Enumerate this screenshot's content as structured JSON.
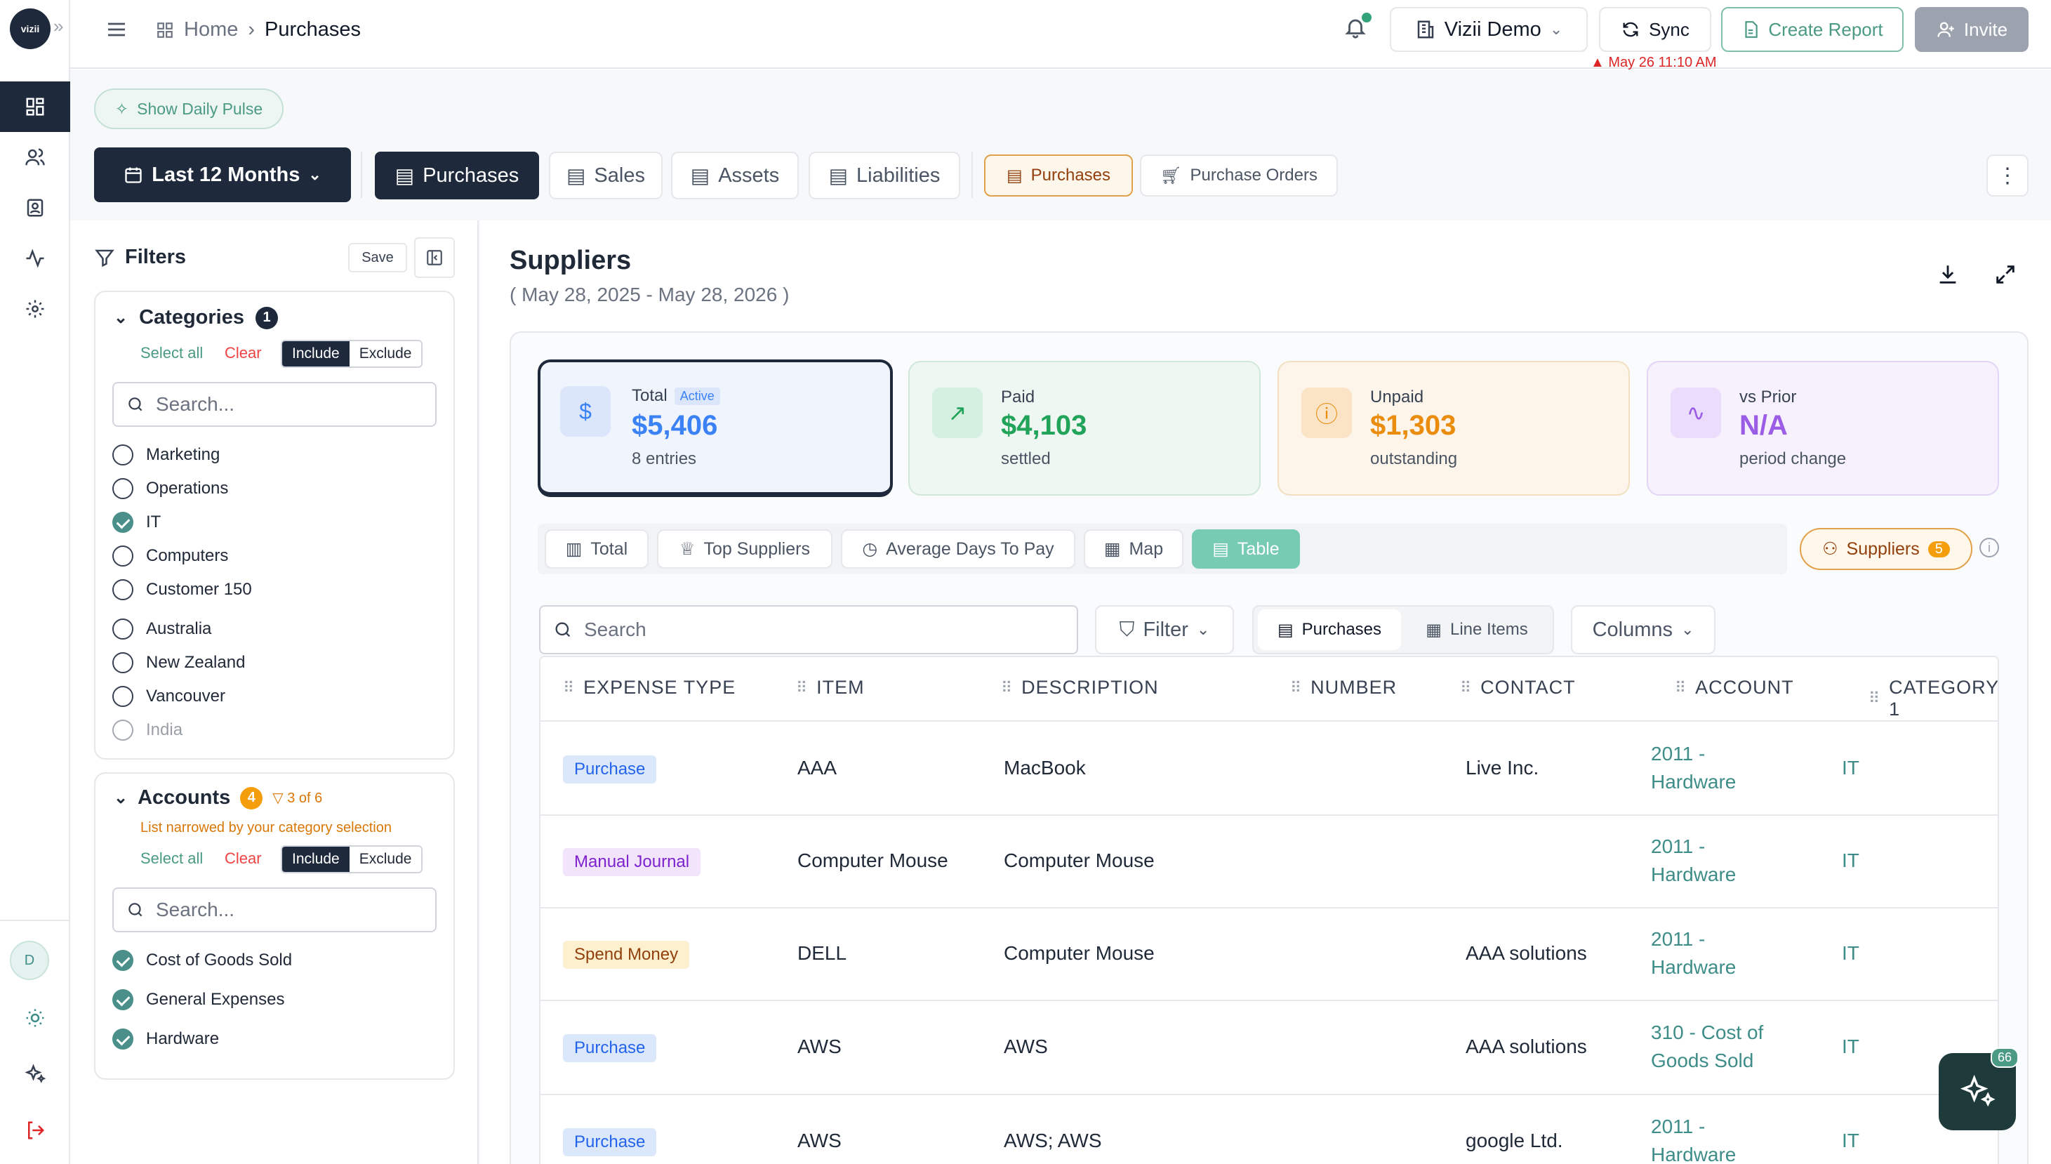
{
  "rail": {
    "logo": "vizii"
  },
  "header": {
    "crumb_home": "Home",
    "crumb_current": "Purchases",
    "org": "Vizii Demo",
    "sync": "Sync",
    "create_report": "Create Report",
    "invite": "Invite",
    "last_sync": "May 26 11:10 AM"
  },
  "pulse": "Show Daily Pulse",
  "tabs": {
    "period": "Last 12 Months",
    "purchases": "Purchases",
    "sales": "Sales",
    "assets": "Assets",
    "liabilities": "Liabilities",
    "sub_purchases": "Purchases",
    "purchase_orders": "Purchase Orders"
  },
  "filters": {
    "title": "Filters",
    "save": "Save",
    "categories": {
      "title": "Categories",
      "count": "1",
      "select_all": "Select all",
      "clear": "Clear",
      "include": "Include",
      "exclude": "Exclude",
      "placeholder": "Search...",
      "items": [
        {
          "label": "Marketing",
          "checked": false
        },
        {
          "label": "Operations",
          "checked": false
        },
        {
          "label": "IT",
          "checked": true
        },
        {
          "label": "Computers",
          "checked": false
        },
        {
          "label": "Customer 150",
          "checked": false
        },
        {
          "label": "Australia",
          "checked": false
        },
        {
          "label": "New Zealand",
          "checked": false
        },
        {
          "label": "Vancouver",
          "checked": false
        },
        {
          "label": "India",
          "checked": false
        }
      ]
    },
    "accounts": {
      "title": "Accounts",
      "count": "4",
      "narrow": "3 of 6",
      "note": "List narrowed by your category selection",
      "select_all": "Select all",
      "clear": "Clear",
      "include": "Include",
      "exclude": "Exclude",
      "placeholder": "Search...",
      "items": [
        {
          "label": "Cost of Goods Sold",
          "checked": true
        },
        {
          "label": "General Expenses",
          "checked": true
        },
        {
          "label": "Hardware",
          "checked": true
        }
      ]
    }
  },
  "main": {
    "title": "Suppliers",
    "range": "( May 28, 2025 - May 28, 2026 )",
    "cards": [
      {
        "label": "Total",
        "badge": "Active",
        "value": "$5,406",
        "sub": "8 entries"
      },
      {
        "label": "Paid",
        "value": "$4,103",
        "sub": "settled"
      },
      {
        "label": "Unpaid",
        "value": "$1,303",
        "sub": "outstanding"
      },
      {
        "label": "vs Prior",
        "value": "N/A",
        "sub": "period change"
      }
    ],
    "views": {
      "total": "Total",
      "top": "Top Suppliers",
      "avg": "Average Days To Pay",
      "map": "Map",
      "table": "Table",
      "suppliers": "Suppliers",
      "suppliers_count": "5"
    },
    "toolbar": {
      "search": "Search",
      "filter": "Filter",
      "purchases": "Purchases",
      "line_items": "Line Items",
      "columns": "Columns"
    },
    "columns": [
      "EXPENSE TYPE",
      "ITEM",
      "DESCRIPTION",
      "NUMBER",
      "CONTACT",
      "ACCOUNT",
      "CATEGORY 1"
    ],
    "rows": [
      {
        "type": "Purchase",
        "item": "AAA",
        "desc": "MacBook",
        "number": "",
        "contact": "Live Inc.",
        "account": [
          "2011 -",
          "Hardware"
        ],
        "cat": "IT"
      },
      {
        "type": "Manual Journal",
        "item": "Computer Mouse",
        "desc": "Computer Mouse",
        "number": "",
        "contact": "",
        "account": [
          "2011 -",
          "Hardware"
        ],
        "cat": "IT"
      },
      {
        "type": "Spend Money",
        "item": "DELL",
        "desc": "Computer Mouse",
        "number": "",
        "contact": "AAA solutions",
        "account": [
          "2011 -",
          "Hardware"
        ],
        "cat": "IT"
      },
      {
        "type": "Purchase",
        "item": "AWS",
        "desc": "AWS",
        "number": "",
        "contact": "AAA solutions",
        "account": [
          "310 - Cost of",
          "Goods Sold"
        ],
        "cat": "IT"
      },
      {
        "type": "Purchase",
        "item": "AWS",
        "desc": "AWS; AWS",
        "number": "",
        "contact": "google Ltd.",
        "account": [
          "2011 -",
          "Hardware"
        ],
        "cat": "IT"
      }
    ],
    "ai_badge": "66",
    "avatar": "D"
  }
}
